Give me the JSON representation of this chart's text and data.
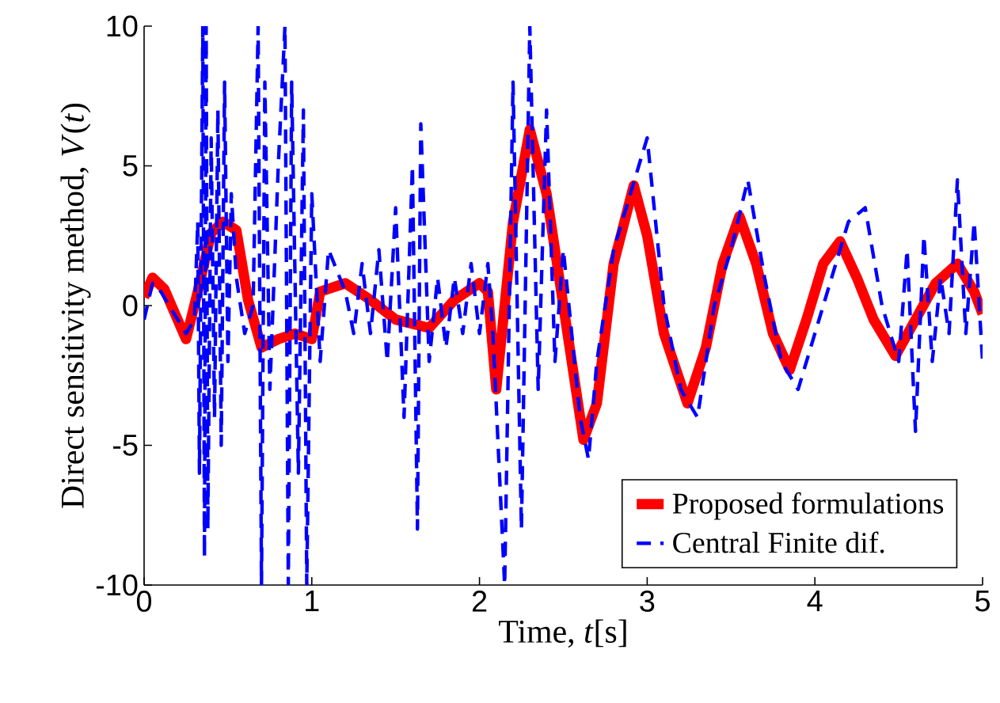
{
  "chart_data": {
    "type": "line",
    "xlabel": "Time, *t*[s]",
    "ylabel": "Direct sensitivity method, *V*(*t*)",
    "xlim": [
      0,
      5
    ],
    "ylim": [
      -10,
      10
    ],
    "xticks": [
      0,
      1,
      2,
      3,
      4,
      5
    ],
    "yticks": [
      -10,
      -5,
      0,
      5,
      10
    ],
    "legend": "bottom right",
    "marker": "none",
    "series": [
      {
        "name": "Proposed formulations",
        "color": "#ff0000",
        "line_style": "solid",
        "x": [
          0,
          0.05,
          0.12,
          0.25,
          0.32,
          0.4,
          0.47,
          0.55,
          0.62,
          0.7,
          0.8,
          0.9,
          1.0,
          1.05,
          1.2,
          1.35,
          1.5,
          1.7,
          1.85,
          2.0,
          2.05,
          2.1,
          2.2,
          2.3,
          2.4,
          2.5,
          2.62,
          2.7,
          2.8,
          2.92,
          3.0,
          3.1,
          3.24,
          3.35,
          3.45,
          3.55,
          3.65,
          3.75,
          3.85,
          3.95,
          4.05,
          4.15,
          4.25,
          4.35,
          4.48,
          4.6,
          4.72,
          4.85,
          4.95,
          5.0
        ],
        "values": [
          0.3,
          1.0,
          0.6,
          -1.2,
          0.5,
          2.6,
          3.0,
          2.7,
          0.2,
          -1.5,
          -1.2,
          -1.0,
          -1.2,
          0.5,
          0.8,
          0.2,
          -0.5,
          -0.8,
          0.2,
          0.8,
          0.5,
          -3.0,
          3.0,
          6.3,
          4.0,
          0.0,
          -4.8,
          -3.5,
          1.5,
          4.3,
          2.5,
          -1.0,
          -3.5,
          -1.5,
          1.5,
          3.2,
          1.5,
          -1.0,
          -2.3,
          -0.5,
          1.5,
          2.3,
          1.0,
          -0.5,
          -1.8,
          -0.5,
          0.8,
          1.5,
          0.5,
          -0.3
        ]
      },
      {
        "name": "Central Finite dif.",
        "color": "#0000ff",
        "line_style": "dashed",
        "x": [
          0,
          0.05,
          0.1,
          0.2,
          0.25,
          0.3,
          0.32,
          0.33,
          0.35,
          0.36,
          0.37,
          0.38,
          0.4,
          0.42,
          0.44,
          0.46,
          0.48,
          0.5,
          0.52,
          0.55,
          0.6,
          0.65,
          0.68,
          0.7,
          0.72,
          0.75,
          0.8,
          0.84,
          0.86,
          0.88,
          0.92,
          0.95,
          0.97,
          1.0,
          1.05,
          1.1,
          1.2,
          1.25,
          1.3,
          1.35,
          1.4,
          1.45,
          1.5,
          1.55,
          1.6,
          1.63,
          1.65,
          1.7,
          1.75,
          1.8,
          1.85,
          1.9,
          1.95,
          2.0,
          2.05,
          2.08,
          2.15,
          2.2,
          2.25,
          2.3,
          2.35,
          2.4,
          2.45,
          2.5,
          2.6,
          2.65,
          2.7,
          2.8,
          2.95,
          3.0,
          3.1,
          3.2,
          3.3,
          3.4,
          3.5,
          3.6,
          3.7,
          3.8,
          3.9,
          4.0,
          4.1,
          4.2,
          4.3,
          4.4,
          4.5,
          4.55,
          4.6,
          4.65,
          4.7,
          4.75,
          4.8,
          4.85,
          4.9,
          4.95,
          5.0
        ],
        "values": [
          -0.5,
          0.8,
          0.5,
          -0.5,
          -1.0,
          -0.5,
          3.0,
          -6.0,
          10,
          -9.0,
          10,
          -8.0,
          6.0,
          -4.0,
          7.0,
          -5.0,
          8.0,
          -2.0,
          4.0,
          1.0,
          -1.0,
          0.0,
          10,
          -10,
          8.0,
          -3.0,
          5.0,
          10,
          -10,
          8.0,
          -6.0,
          7.0,
          -10,
          4.0,
          -2.0,
          2.0,
          0.5,
          -1.0,
          1.5,
          -1.0,
          2.0,
          -2.0,
          3.5,
          -4.0,
          5.0,
          -8.0,
          6.5,
          -2.0,
          1.0,
          -1.5,
          1.0,
          -1.0,
          1.5,
          -1.0,
          1.5,
          -1.0,
          -10,
          8.0,
          -8.0,
          10,
          -3.0,
          7.0,
          -2.0,
          2.0,
          -4.0,
          -5.5,
          -2.0,
          2.0,
          5.0,
          6.0,
          0.0,
          -3.0,
          -4.0,
          0.0,
          2.0,
          4.5,
          1.0,
          -2.0,
          -3.0,
          -1.0,
          1.0,
          3.0,
          3.5,
          0.0,
          -2.0,
          2.0,
          -4.5,
          2.5,
          -2.0,
          1.0,
          -1.0,
          4.5,
          -1.0,
          3.0,
          -2.0
        ]
      }
    ]
  }
}
